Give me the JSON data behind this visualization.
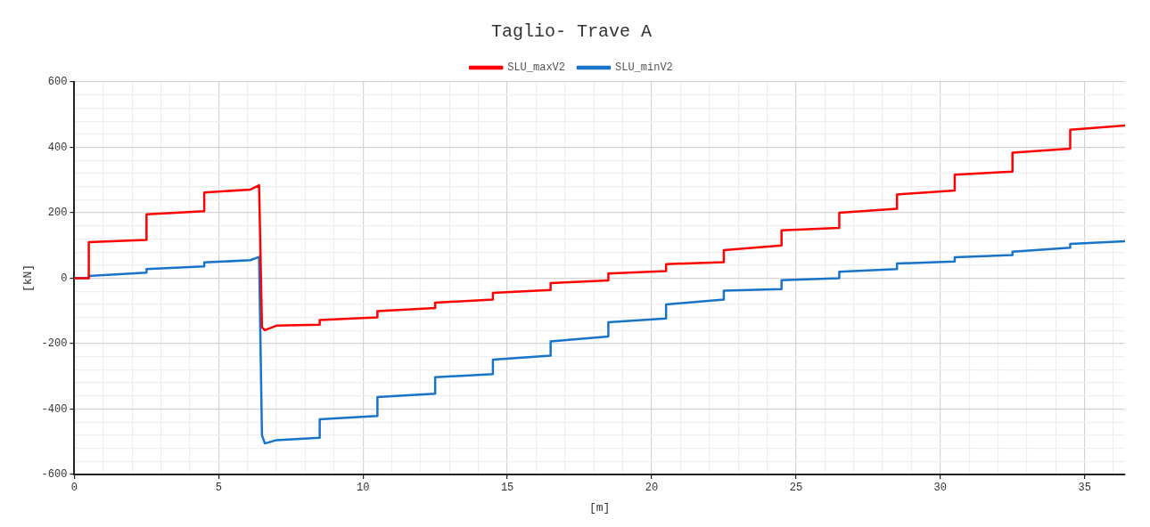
{
  "chart_data": {
    "type": "line",
    "title": "Taglio- Trave A",
    "xlabel": "[m]",
    "ylabel": "[kN]",
    "legend": "top",
    "grid": true,
    "marker": "none",
    "line_style": "solid",
    "xlim": [
      0,
      36.4
    ],
    "xticks": [
      0,
      {
        "value": 1,
        "label": null
      },
      {
        "value": 2,
        "label": null
      },
      {
        "value": 3,
        "label": null
      },
      {
        "value": 4,
        "label": null
      },
      5,
      {
        "value": 6,
        "label": null
      },
      {
        "value": 7,
        "label": null
      },
      {
        "value": 8,
        "label": null
      },
      {
        "value": 9,
        "label": null
      },
      10,
      {
        "value": 11,
        "label": null
      },
      {
        "value": 12,
        "label": null
      },
      {
        "value": 13,
        "label": null
      },
      {
        "value": 14,
        "label": null
      },
      15,
      {
        "value": 16,
        "label": null
      },
      {
        "value": 17,
        "label": null
      },
      {
        "value": 18,
        "label": null
      },
      {
        "value": 19,
        "label": null
      },
      20,
      {
        "value": 21,
        "label": null
      },
      {
        "value": 22,
        "label": null
      },
      {
        "value": 23,
        "label": null
      },
      {
        "value": 24,
        "label": null
      },
      25,
      {
        "value": 26,
        "label": null
      },
      {
        "value": 27,
        "label": null
      },
      {
        "value": 28,
        "label": null
      },
      {
        "value": 29,
        "label": null
      },
      30,
      {
        "value": 31,
        "label": null
      },
      {
        "value": 32,
        "label": null
      },
      {
        "value": 33,
        "label": null
      },
      {
        "value": 34,
        "label": null
      },
      35,
      {
        "value": 36,
        "label": null
      }
    ],
    "ylim": [
      -600,
      600
    ],
    "yticks": [
      -600,
      {
        "value": -560,
        "label": null
      },
      {
        "value": -520,
        "label": null
      },
      {
        "value": -480,
        "label": null
      },
      {
        "value": -440,
        "label": null
      },
      -400,
      {
        "value": -360,
        "label": null
      },
      {
        "value": -320,
        "label": null
      },
      {
        "value": -280,
        "label": null
      },
      {
        "value": -240,
        "label": null
      },
      -200,
      {
        "value": -160,
        "label": null
      },
      {
        "value": -120,
        "label": null
      },
      {
        "value": -80,
        "label": null
      },
      {
        "value": -40,
        "label": null
      },
      0,
      {
        "value": 40,
        "label": null
      },
      {
        "value": 80,
        "label": null
      },
      {
        "value": 120,
        "label": null
      },
      {
        "value": 160,
        "label": null
      },
      200,
      {
        "value": 240,
        "label": null
      },
      {
        "value": 280,
        "label": null
      },
      {
        "value": 320,
        "label": null
      },
      {
        "value": 360,
        "label": null
      },
      400,
      {
        "value": 440,
        "label": null
      },
      {
        "value": 480,
        "label": null
      },
      {
        "value": 520,
        "label": null
      },
      {
        "value": 560,
        "label": null
      },
      600
    ],
    "series": [
      {
        "name": "SLU_maxV2",
        "color": "#ff0000",
        "x": [
          0,
          0.5,
          0.5,
          2.5,
          2.5,
          4.5,
          4.5,
          6.1,
          6.4,
          6.5,
          6.6,
          7,
          8.5,
          8.5,
          10.5,
          10.5,
          12.5,
          12.5,
          14.5,
          14.5,
          16.5,
          16.5,
          18.5,
          18.5,
          20.5,
          20.5,
          22.5,
          22.5,
          24.5,
          24.5,
          26.5,
          26.5,
          28.5,
          28.5,
          30.5,
          30.5,
          32.5,
          32.5,
          34.5,
          34.5,
          36.4
        ],
        "values": [
          0,
          0,
          110,
          117,
          195,
          205,
          262,
          271,
          284,
          -150,
          -159,
          -145,
          -142,
          -128,
          -120,
          -101,
          -91,
          -75,
          -65,
          -45,
          -36,
          -15,
          -7,
          14,
          22,
          43,
          49,
          86,
          100,
          146,
          154,
          200,
          212,
          256,
          268,
          316,
          326,
          384,
          396,
          454,
          467
        ]
      },
      {
        "name": "SLU_minV2",
        "color": "#1874c8",
        "x": [
          0,
          0.5,
          0.5,
          2.5,
          2.5,
          4.5,
          4.5,
          6.1,
          6.4,
          6.5,
          6.6,
          7,
          8.5,
          8.5,
          10.5,
          10.5,
          12.5,
          12.5,
          14.5,
          14.5,
          16.5,
          16.5,
          18.5,
          18.5,
          20.5,
          20.5,
          22.5,
          22.5,
          24.5,
          24.5,
          26.5,
          26.5,
          28.5,
          28.5,
          30.5,
          30.5,
          32.5,
          32.5,
          34.5,
          34.5,
          36.4
        ],
        "values": [
          0,
          0,
          7,
          17,
          28,
          36,
          48,
          55,
          65,
          -480,
          -505,
          -495,
          -488,
          -431,
          -421,
          -363,
          -353,
          -303,
          -293,
          -249,
          -237,
          -193,
          -178,
          -135,
          -123,
          -80,
          -65,
          -38,
          -33,
          -6,
          0,
          20,
          28,
          45,
          51,
          64,
          71,
          81,
          93,
          105,
          113
        ]
      }
    ]
  }
}
